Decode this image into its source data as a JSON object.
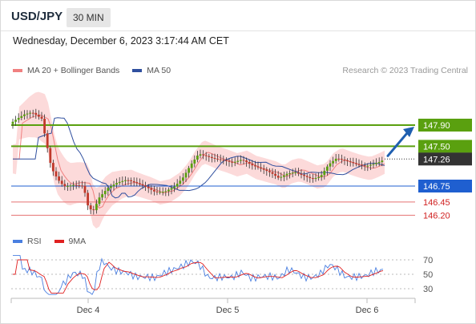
{
  "header": {
    "symbol": "USD/JPY",
    "timeframe": "30 MIN"
  },
  "datetime": "Wednesday, December 6, 2023 3:17:44 AM CET",
  "legend": {
    "ma_bb": {
      "label": "MA 20 + Bollinger Bands",
      "color": "#f08080"
    },
    "ma50": {
      "label": "MA 50",
      "color": "#2f4f9f"
    },
    "credit": "Research © 2023 Trading Central"
  },
  "rsi_legend": {
    "rsi": {
      "label": "RSI",
      "color": "#4a7fe0"
    },
    "ma9": {
      "label": "9MA",
      "color": "#e02020"
    }
  },
  "levels": [
    {
      "label": "147.90",
      "value": 147.9,
      "color": "#5aa00f",
      "style": "resistance"
    },
    {
      "label": "147.50",
      "value": 147.5,
      "color": "#5aa00f",
      "style": "resistance"
    },
    {
      "label": "147.26",
      "value": 147.26,
      "color": "#333333",
      "style": "last-price"
    },
    {
      "label": "146.75",
      "value": 146.75,
      "color": "#1f5fd0",
      "style": "pivot"
    },
    {
      "label": "146.45",
      "value": 146.45,
      "color": "#d02020",
      "style": "support"
    },
    {
      "label": "146.20",
      "value": 146.2,
      "color": "#d02020",
      "style": "support"
    }
  ],
  "rsi_axis": [
    "70",
    "50",
    "30"
  ],
  "x_axis": [
    "Dec 4",
    "Dec 5",
    "Dec 6"
  ],
  "colors": {
    "up": "#5aa00f",
    "down": "#c0392b",
    "band_fill": "#fbd4d4",
    "arrow": "#1f5fb0"
  }
}
